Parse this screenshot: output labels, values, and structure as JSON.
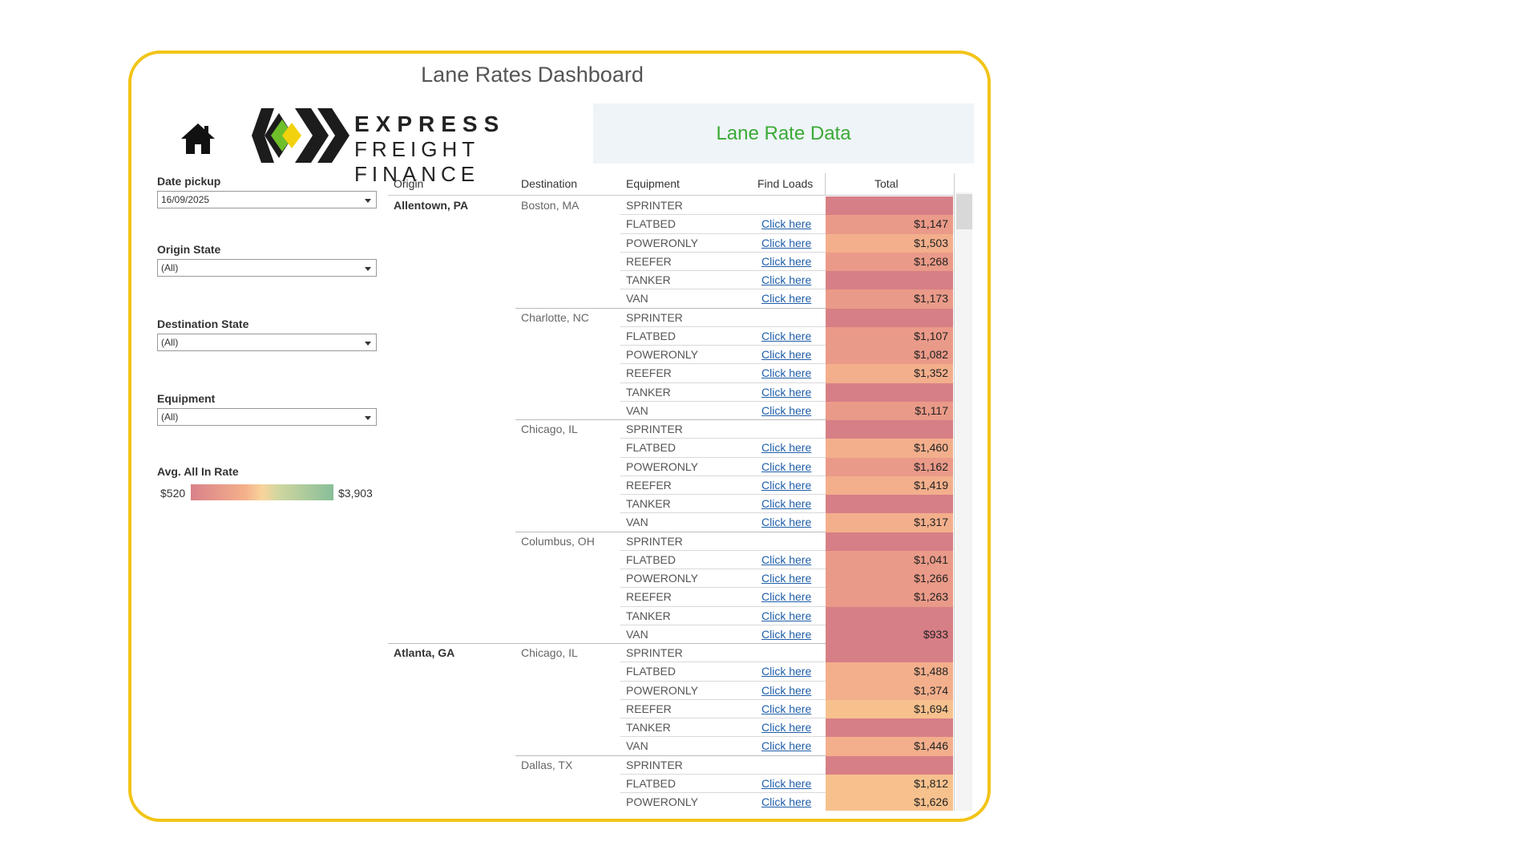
{
  "page_title": "Lane Rates Dashboard",
  "logo": {
    "line1": "EXPRESS",
    "line2": "FREIGHT FINANCE"
  },
  "header_panel": {
    "title": "Lane Rate Data"
  },
  "filters": [
    {
      "label": "Date pickup",
      "value": "16/09/2025"
    },
    {
      "label": "Origin State",
      "value": "(All)"
    },
    {
      "label": "Destination State",
      "value": "(All)"
    },
    {
      "label": "Equipment",
      "value": "(All)"
    }
  ],
  "legend": {
    "title": "Avg. All In Rate",
    "min": "$520",
    "max": "$3,903"
  },
  "table": {
    "columns": [
      "Origin",
      "Destination",
      "Equipment",
      "Find Loads",
      "Total"
    ],
    "link_text": "Click here",
    "colors": {
      "dark": "#d77f86",
      "mid": "#ea9a88",
      "light": "#f3af8c",
      "lighter": "#f7c18d"
    },
    "groups": [
      {
        "origin": "Allentown, PA",
        "destination": "Boston, MA",
        "rows": [
          {
            "equipment": "SPRINTER",
            "link": false,
            "total": "",
            "color": "dark"
          },
          {
            "equipment": "FLATBED",
            "link": true,
            "total": "$1,147",
            "color": "mid"
          },
          {
            "equipment": "POWERONLY",
            "link": true,
            "total": "$1,503",
            "color": "light"
          },
          {
            "equipment": "REEFER",
            "link": true,
            "total": "$1,268",
            "color": "mid"
          },
          {
            "equipment": "TANKER",
            "link": true,
            "total": "",
            "color": "dark"
          },
          {
            "equipment": "VAN",
            "link": true,
            "total": "$1,173",
            "color": "mid"
          }
        ]
      },
      {
        "origin": "",
        "destination": "Charlotte, NC",
        "rows": [
          {
            "equipment": "SPRINTER",
            "link": false,
            "total": "",
            "color": "dark"
          },
          {
            "equipment": "FLATBED",
            "link": true,
            "total": "$1,107",
            "color": "mid"
          },
          {
            "equipment": "POWERONLY",
            "link": true,
            "total": "$1,082",
            "color": "mid"
          },
          {
            "equipment": "REEFER",
            "link": true,
            "total": "$1,352",
            "color": "light"
          },
          {
            "equipment": "TANKER",
            "link": true,
            "total": "",
            "color": "dark"
          },
          {
            "equipment": "VAN",
            "link": true,
            "total": "$1,117",
            "color": "mid"
          }
        ]
      },
      {
        "origin": "",
        "destination": "Chicago, IL",
        "rows": [
          {
            "equipment": "SPRINTER",
            "link": false,
            "total": "",
            "color": "dark"
          },
          {
            "equipment": "FLATBED",
            "link": true,
            "total": "$1,460",
            "color": "light"
          },
          {
            "equipment": "POWERONLY",
            "link": true,
            "total": "$1,162",
            "color": "mid"
          },
          {
            "equipment": "REEFER",
            "link": true,
            "total": "$1,419",
            "color": "light"
          },
          {
            "equipment": "TANKER",
            "link": true,
            "total": "",
            "color": "dark"
          },
          {
            "equipment": "VAN",
            "link": true,
            "total": "$1,317",
            "color": "light"
          }
        ]
      },
      {
        "origin": "",
        "destination": "Columbus, OH",
        "rows": [
          {
            "equipment": "SPRINTER",
            "link": false,
            "total": "",
            "color": "dark"
          },
          {
            "equipment": "FLATBED",
            "link": true,
            "total": "$1,041",
            "color": "mid"
          },
          {
            "equipment": "POWERONLY",
            "link": true,
            "total": "$1,266",
            "color": "mid"
          },
          {
            "equipment": "REEFER",
            "link": true,
            "total": "$1,263",
            "color": "mid"
          },
          {
            "equipment": "TANKER",
            "link": true,
            "total": "",
            "color": "dark"
          },
          {
            "equipment": "VAN",
            "link": true,
            "total": "$933",
            "color": "dark"
          }
        ]
      },
      {
        "origin": "Atlanta, GA",
        "destination": "Chicago, IL",
        "rows": [
          {
            "equipment": "SPRINTER",
            "link": false,
            "total": "",
            "color": "dark"
          },
          {
            "equipment": "FLATBED",
            "link": true,
            "total": "$1,488",
            "color": "light"
          },
          {
            "equipment": "POWERONLY",
            "link": true,
            "total": "$1,374",
            "color": "light"
          },
          {
            "equipment": "REEFER",
            "link": true,
            "total": "$1,694",
            "color": "lighter"
          },
          {
            "equipment": "TANKER",
            "link": true,
            "total": "",
            "color": "dark"
          },
          {
            "equipment": "VAN",
            "link": true,
            "total": "$1,446",
            "color": "light"
          }
        ]
      },
      {
        "origin": "",
        "destination": "Dallas, TX",
        "rows": [
          {
            "equipment": "SPRINTER",
            "link": false,
            "total": "",
            "color": "dark"
          },
          {
            "equipment": "FLATBED",
            "link": true,
            "total": "$1,812",
            "color": "lighter"
          },
          {
            "equipment": "POWERONLY",
            "link": true,
            "total": "$1,626",
            "color": "lighter"
          }
        ]
      }
    ]
  }
}
